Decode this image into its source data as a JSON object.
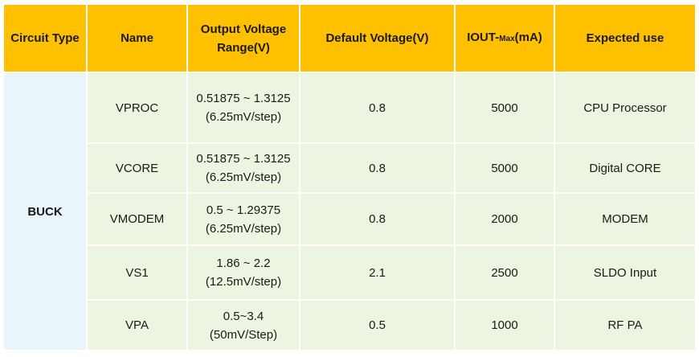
{
  "header": {
    "circuit_type": "Circuit Type",
    "name": "Name",
    "range": [
      "Output Voltage",
      "Range(V)"
    ],
    "default_voltage": "Default Voltage(V)",
    "iout": {
      "main": "IOUT-",
      "sub": "Max",
      "unit": "(mA)"
    },
    "expected_use": "Expected use"
  },
  "circuit_type": "BUCK",
  "rows": [
    {
      "name": "VPROC",
      "range": [
        "0.51875 ~ 1.3125",
        "(6.25mV/step)"
      ],
      "default_voltage": "0.8",
      "iout": "5000",
      "expected_use": "CPU Processor"
    },
    {
      "name": "VCORE",
      "range": [
        "0.51875 ~ 1.3125",
        "(6.25mV/step)"
      ],
      "default_voltage": "0.8",
      "iout": "5000",
      "expected_use": "Digital CORE"
    },
    {
      "name": "VMODEM",
      "range": [
        "0.5 ~ 1.29375",
        "(6.25mV/step)"
      ],
      "default_voltage": "0.8",
      "iout": "2000",
      "expected_use": "MODEM"
    },
    {
      "name": "VS1",
      "range": [
        "1.86 ~ 2.2",
        "(12.5mV/step)"
      ],
      "default_voltage": "2.1",
      "iout": "2500",
      "expected_use": "SLDO Input"
    },
    {
      "name": "VPA",
      "range": [
        "0.5~3.4",
        "(50mV/Step)"
      ],
      "default_voltage": "0.5",
      "iout": "1000",
      "expected_use": "RF PA"
    }
  ]
}
